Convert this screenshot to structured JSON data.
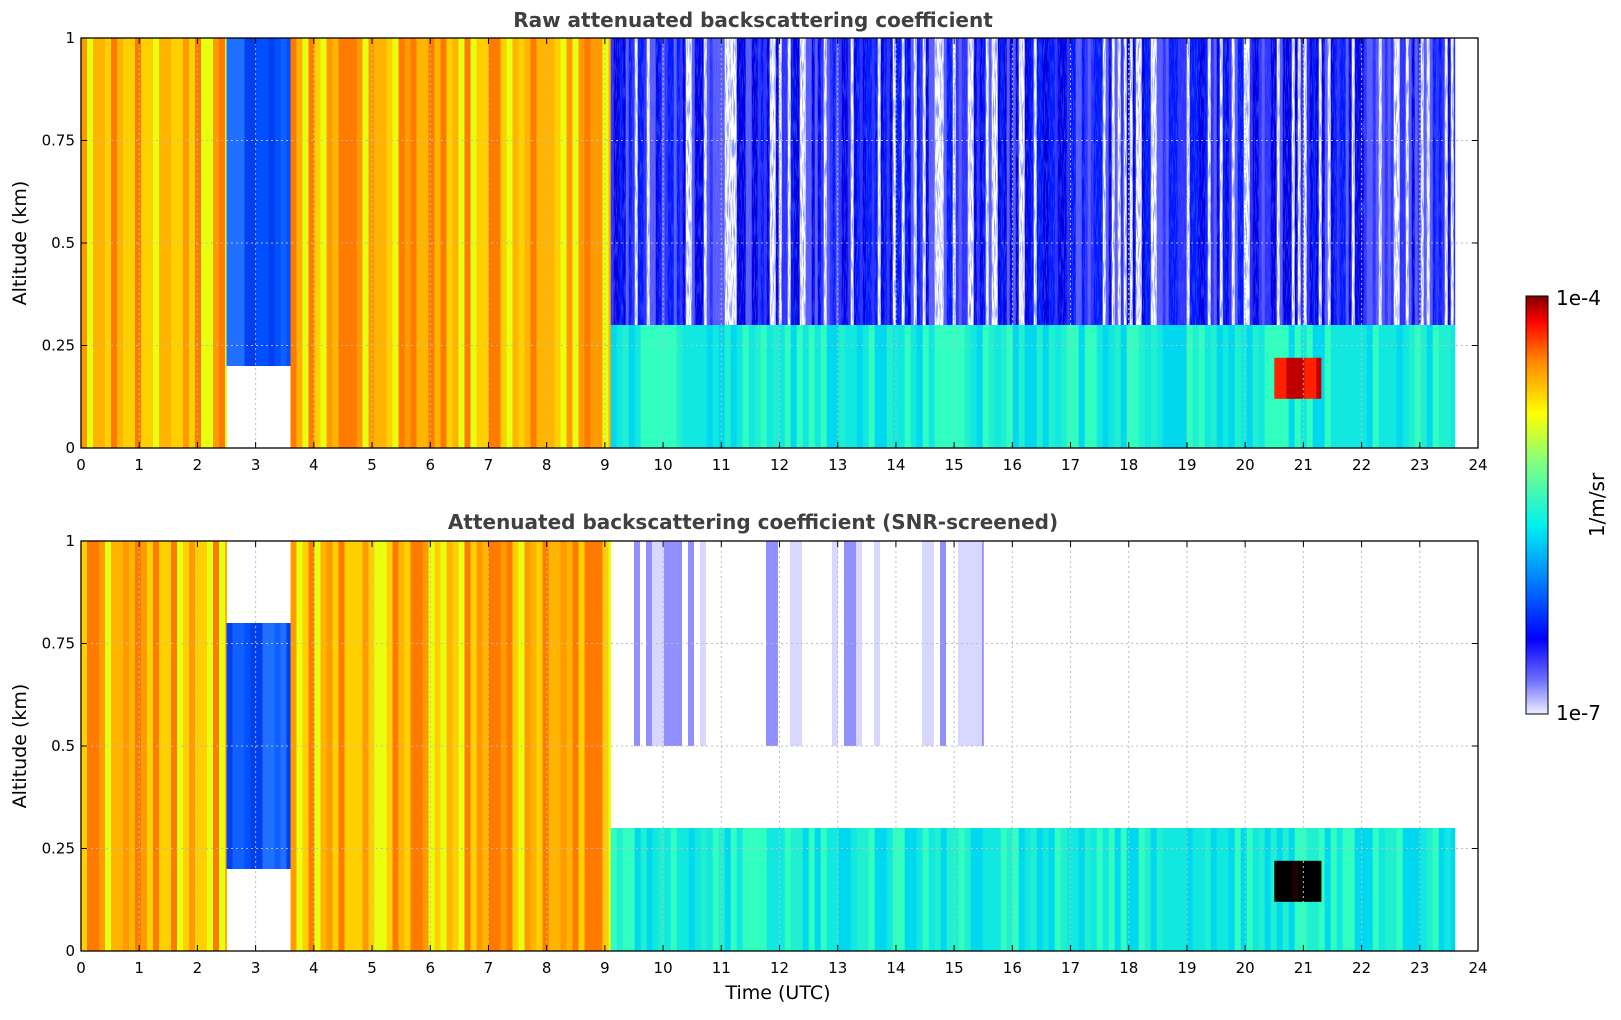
{
  "chart_data": [
    {
      "type": "heatmap",
      "title": "Raw attenuated backscattering coefficient",
      "xlabel": "",
      "ylabel": "Altitude (km)",
      "xlim": [
        0,
        24
      ],
      "ylim": [
        0,
        1
      ],
      "x_ticks": [
        "0",
        "1",
        "2",
        "3",
        "4",
        "5",
        "6",
        "7",
        "8",
        "9",
        "10",
        "11",
        "12",
        "13",
        "14",
        "15",
        "16",
        "17",
        "18",
        "19",
        "20",
        "21",
        "22",
        "23",
        "24"
      ],
      "y_ticks": [
        "0",
        "0.25",
        "0.5",
        "0.75",
        "1"
      ],
      "grid": true,
      "colorscale": "jet",
      "color_range": [
        "1e-7",
        "1e-4"
      ],
      "screened": false,
      "regions": [
        {
          "x": [
            0,
            2.5
          ],
          "y": [
            0,
            1
          ],
          "level": "high"
        },
        {
          "x": [
            2.5,
            3.6
          ],
          "y": [
            0.2,
            1
          ],
          "level": "low"
        },
        {
          "x": [
            3.6,
            9.1
          ],
          "y": [
            0,
            1
          ],
          "level": "high"
        },
        {
          "x": [
            9.1,
            23.6
          ],
          "y": [
            0,
            0.3
          ],
          "level": "moderate"
        },
        {
          "x": [
            9.1,
            23.6
          ],
          "y": [
            0.3,
            1
          ],
          "level": "noise"
        },
        {
          "x": [
            20.5,
            21.3
          ],
          "y": [
            0.12,
            0.22
          ],
          "level": "max"
        }
      ]
    },
    {
      "type": "heatmap",
      "title": "Attenuated backscattering coefficient (SNR-screened)",
      "xlabel": "Time (UTC)",
      "ylabel": "Altitude (km)",
      "xlim": [
        0,
        24
      ],
      "ylim": [
        0,
        1
      ],
      "x_ticks": [
        "0",
        "1",
        "2",
        "3",
        "4",
        "5",
        "6",
        "7",
        "8",
        "9",
        "10",
        "11",
        "12",
        "13",
        "14",
        "15",
        "16",
        "17",
        "18",
        "19",
        "20",
        "21",
        "22",
        "23",
        "24"
      ],
      "y_ticks": [
        "0",
        "0.25",
        "0.5",
        "0.75",
        "1"
      ],
      "grid": true,
      "colorscale": "jet",
      "color_range": [
        "1e-7",
        "1e-4"
      ],
      "screened": true,
      "regions": [
        {
          "x": [
            0,
            2.5
          ],
          "y": [
            0,
            1
          ],
          "level": "high"
        },
        {
          "x": [
            2.5,
            3.6
          ],
          "y": [
            0.2,
            0.8
          ],
          "level": "low"
        },
        {
          "x": [
            3.6,
            9.1
          ],
          "y": [
            0,
            1
          ],
          "level": "high"
        },
        {
          "x": [
            9.1,
            23.6
          ],
          "y": [
            0,
            0.3
          ],
          "level": "moderate"
        },
        {
          "x": [
            9.5,
            15.5
          ],
          "y": [
            0.5,
            1
          ],
          "level": "screened"
        },
        {
          "x": [
            20.5,
            21.3
          ],
          "y": [
            0.12,
            0.22
          ],
          "level": "saturated"
        }
      ]
    }
  ],
  "colorbar": {
    "label": "1/m/sr",
    "max_label": "1e-4",
    "min_label": "1e-7"
  }
}
